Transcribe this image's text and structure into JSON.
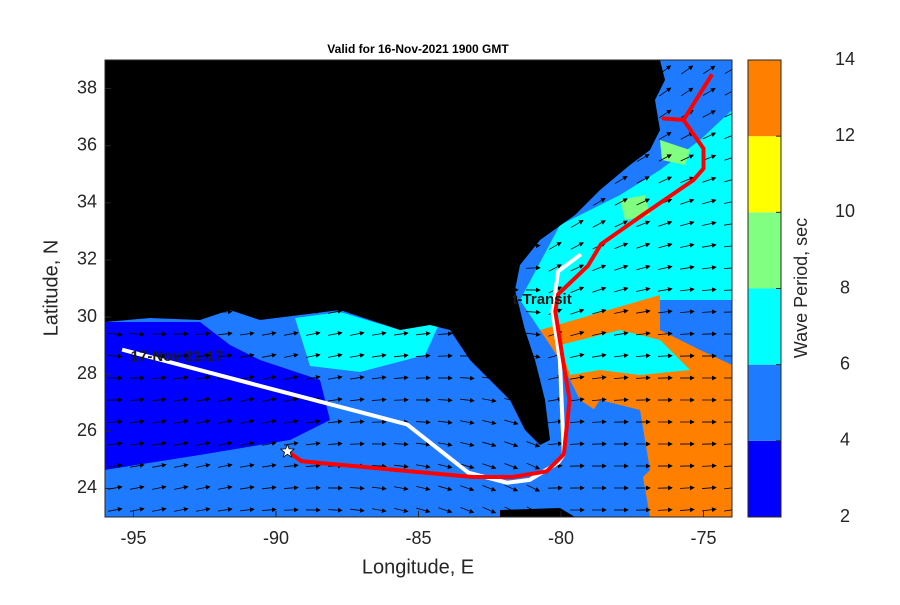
{
  "chart_data": {
    "type": "map",
    "title": "Valid for 16-Nov-2021 1900 GMT",
    "xlabel": "Longitude, E",
    "ylabel": "Latitude, N",
    "xlim": [
      -96,
      -74
    ],
    "ylim": [
      23,
      39
    ],
    "xticks": [
      -95,
      -90,
      -85,
      -80,
      -75
    ],
    "yticks": [
      24,
      26,
      28,
      30,
      32,
      34,
      36,
      38
    ],
    "colorbar": {
      "label": "Wave Period, sec",
      "lim": [
        2,
        14
      ],
      "ticks": [
        2,
        4,
        6,
        8,
        10,
        12,
        14
      ],
      "colors": [
        "#0000ff",
        "#1e7bff",
        "#00ffff",
        "#80ff80",
        "#ffff00",
        "#ff8000"
      ]
    },
    "tracks": [
      {
        "color": "#ffffff",
        "x": [
          -95.4,
          -85.4,
          -83.25,
          -81.9,
          -81.1,
          -80.1,
          -79.9,
          -80.04,
          -80.3,
          -80.1,
          -79.3
        ],
        "y": [
          28.86,
          26.24,
          24.55,
          24.2,
          24.3,
          24.9,
          25.2,
          28.5,
          30.2,
          31.6,
          32.2
        ]
      },
      {
        "color": "#ff0000",
        "x": [
          -89.6,
          -89.1,
          -83.1,
          -81.7,
          -80.5,
          -79.9,
          -79.7,
          -79.9,
          -80.2,
          -80.1,
          -79.05,
          -78.6,
          -77.1,
          -75.35,
          -75.0,
          -75.0,
          -75.7,
          -76.4,
          -75.7,
          -74.7
        ],
        "y": [
          25.3,
          24.95,
          24.4,
          24.4,
          24.6,
          25.2,
          27.1,
          28.3,
          30.2,
          30.8,
          31.8,
          32.55,
          33.6,
          34.8,
          35.2,
          35.9,
          36.9,
          36.95,
          36.9,
          38.5
        ]
      }
    ],
    "marker": {
      "x": -89.6,
      "y": 25.3
    },
    "annotations": [
      {
        "text": "17-Nov 21:17",
        "x": -95.1,
        "y": 28.6
      },
      {
        "text": "t-Transit",
        "x": -81.7,
        "y": 30.6
      }
    ]
  }
}
